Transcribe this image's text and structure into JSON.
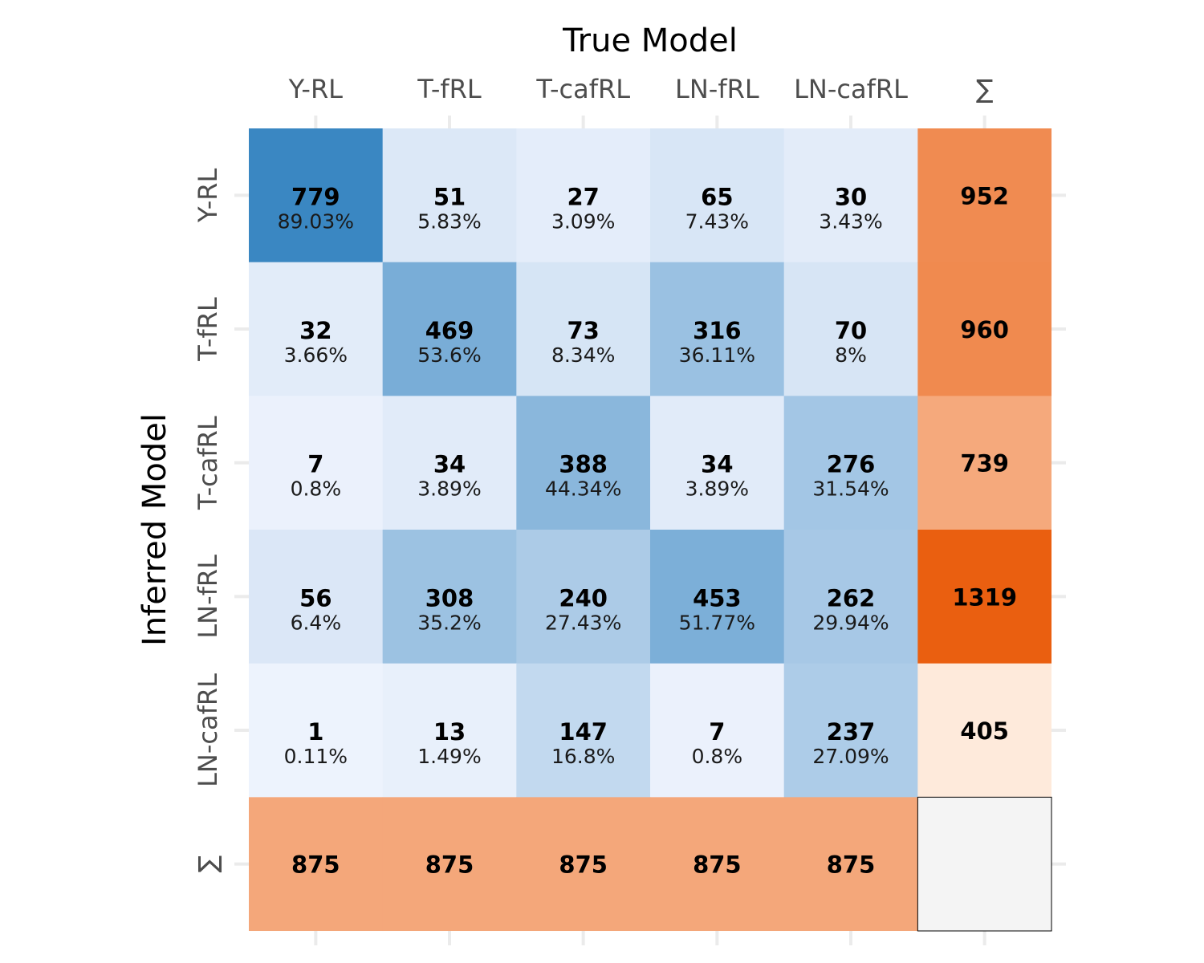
{
  "chart_data": {
    "type": "heatmap",
    "xlabel": "True Model",
    "ylabel": "Inferred Model",
    "x_categories": [
      "Y-RL",
      "T-fRL",
      "T-cafRL",
      "LN-fRL",
      "LN-cafRL",
      "∑"
    ],
    "y_categories": [
      "Y-RL",
      "T-fRL",
      "T-cafRL",
      "LN-fRL",
      "LN-cafRL",
      "∑"
    ],
    "counts": [
      [
        779,
        51,
        27,
        65,
        30
      ],
      [
        32,
        469,
        73,
        316,
        70
      ],
      [
        7,
        34,
        388,
        34,
        276
      ],
      [
        56,
        308,
        240,
        453,
        262
      ],
      [
        1,
        13,
        147,
        7,
        237
      ]
    ],
    "percentages": [
      [
        "89.03%",
        "5.83%",
        "3.09%",
        "7.43%",
        "3.43%"
      ],
      [
        "3.66%",
        "53.6%",
        "8.34%",
        "36.11%",
        "8%"
      ],
      [
        "0.8%",
        "3.89%",
        "44.34%",
        "3.89%",
        "31.54%"
      ],
      [
        "6.4%",
        "35.2%",
        "27.43%",
        "51.77%",
        "29.94%"
      ],
      [
        "0.11%",
        "1.49%",
        "16.8%",
        "0.8%",
        "27.09%"
      ]
    ],
    "row_sums": [
      952,
      960,
      739,
      1319,
      405
    ],
    "column_sums": [
      875,
      875,
      875,
      875,
      875
    ],
    "grid": true,
    "colors": {
      "main_scale_low": "#eef3fd",
      "main_scale_high": "#3a87c2",
      "sum_scale_low": "#feeadb",
      "sum_scale_high": "#ea5f10",
      "corner_fill": "#f4f4f4",
      "corner_border": "#000000",
      "grid_line": "#ebebeb"
    }
  }
}
